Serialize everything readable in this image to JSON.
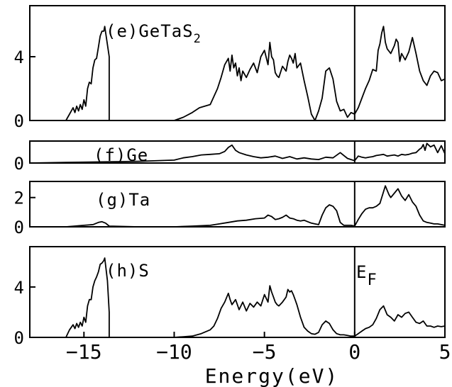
{
  "figure": {
    "xlabel": "Energy(eV)",
    "ef_label": "E",
    "ef_sub": "F"
  },
  "chart_data": [
    {
      "type": "line",
      "label": "(e)GeTaS",
      "label_sub": "2",
      "xlim": [
        -18,
        5
      ],
      "ylim": [
        0,
        7.2
      ],
      "yticks": [
        0,
        4
      ],
      "xticks": [],
      "fermi_line": 0,
      "series": [
        {
          "x": [
            -16,
            -15.8,
            -15.6,
            -15.5,
            -15.4,
            -15.3,
            -15.2,
            -15.1,
            -15.0,
            -14.9,
            -14.8,
            -14.7,
            -14.6,
            -14.5,
            -14.4,
            -14.3,
            -14.2,
            -14.1,
            -14.0,
            -13.9,
            -13.85,
            -13.6,
            -13.6,
            -10,
            -9.5,
            -9,
            -8.6,
            -8.3,
            -8.0,
            -7.8,
            -7.6,
            -7.4,
            -7.2,
            -7.0,
            -6.9,
            -6.8,
            -6.7,
            -6.6,
            -6.5,
            -6.4,
            -6.3,
            -6.2,
            -6.0,
            -5.8,
            -5.6,
            -5.4,
            -5.2,
            -5.0,
            -4.8,
            -4.7,
            -4.6,
            -4.5,
            -4.4,
            -4.3,
            -4.2,
            -4.0,
            -3.8,
            -3.7,
            -3.6,
            -3.5,
            -3.4,
            -3.3,
            -3.2,
            -3.0,
            -2.8,
            -2.6,
            -2.4,
            -2.2,
            -2.0,
            -1.8,
            -1.6,
            -1.4,
            -1.2,
            -1.0,
            -0.8,
            -0.6,
            -0.4,
            -0.2,
            0,
            0.2,
            0.4,
            0.6,
            0.8,
            1.0,
            1.2,
            1.3,
            1.4,
            1.5,
            1.6,
            1.7,
            1.8,
            2.0,
            2.2,
            2.3,
            2.4,
            2.5,
            2.6,
            2.8,
            3.0,
            3.2,
            3.4,
            3.6,
            3.8,
            4.0,
            4.2,
            4.4,
            4.6,
            4.8,
            5.0
          ],
          "y": [
            0,
            0.4,
            0.8,
            0.5,
            0.9,
            0.6,
            1.0,
            0.7,
            1.3,
            0.9,
            2.0,
            2.4,
            2.3,
            3.3,
            3.8,
            3.9,
            4.6,
            5.3,
            5.6,
            5.6,
            5.9,
            4.0,
            0,
            0,
            0.2,
            0.5,
            0.8,
            0.9,
            1.0,
            1.5,
            2.0,
            2.7,
            3.5,
            3.9,
            3.1,
            4.1,
            3.3,
            3.6,
            2.8,
            3.3,
            2.5,
            3.1,
            2.7,
            3.2,
            3.6,
            3.0,
            4.0,
            4.4,
            3.5,
            4.9,
            4.0,
            3.8,
            3.0,
            2.8,
            2.7,
            3.4,
            3.1,
            3.7,
            4.1,
            3.9,
            3.6,
            4.2,
            3.3,
            3.6,
            2.5,
            1.5,
            0.4,
            0,
            0.6,
            1.4,
            3.1,
            3.3,
            2.6,
            1.2,
            0.6,
            0.7,
            0.2,
            0.5,
            0.4,
            0.8,
            1.4,
            2.0,
            2.5,
            3.2,
            3.1,
            4.4,
            4.8,
            5.5,
            5.9,
            4.9,
            4.5,
            4.2,
            4.7,
            5.1,
            4.9,
            3.7,
            4.2,
            3.8,
            4.3,
            5.2,
            4.2,
            3.1,
            2.5,
            2.2,
            2.8,
            3.1,
            3.0,
            2.5,
            2.6
          ]
        }
      ]
    },
    {
      "type": "line",
      "label": "(f)Ge",
      "xlim": [
        -18,
        5
      ],
      "ylim": [
        0,
        1.9
      ],
      "yticks": [
        0
      ],
      "xticks": [],
      "fermi_line": 0,
      "series": [
        {
          "x": [
            -18,
            -16,
            -14,
            -12,
            -10,
            -9.5,
            -9,
            -8.5,
            -8,
            -7.5,
            -7.2,
            -7.0,
            -6.8,
            -6.6,
            -6.4,
            -6.0,
            -5.6,
            -5.2,
            -4.8,
            -4.4,
            -4.0,
            -3.6,
            -3.2,
            -2.8,
            -2.4,
            -2.0,
            -1.6,
            -1.2,
            -0.8,
            -0.4,
            -0.2,
            0,
            0.2,
            0.4,
            0.6,
            0.8,
            1.0,
            1.2,
            1.4,
            1.6,
            1.8,
            2.0,
            2.2,
            2.4,
            2.6,
            2.8,
            3.0,
            3.2,
            3.4,
            3.6,
            3.7,
            3.8,
            3.9,
            4.0,
            4.2,
            4.4,
            4.6,
            4.8,
            5.0
          ],
          "y": [
            0,
            0.05,
            0.1,
            0.15,
            0.25,
            0.45,
            0.55,
            0.7,
            0.75,
            0.8,
            1.0,
            1.35,
            1.55,
            1.1,
            0.9,
            0.7,
            0.55,
            0.45,
            0.5,
            0.6,
            0.4,
            0.55,
            0.35,
            0.45,
            0.35,
            0.3,
            0.5,
            0.45,
            0.9,
            0.4,
            0.3,
            0.2,
            0.6,
            0.5,
            0.45,
            0.5,
            0.55,
            0.65,
            0.7,
            0.75,
            0.6,
            0.65,
            0.7,
            0.6,
            0.75,
            0.7,
            0.75,
            0.85,
            0.9,
            1.2,
            1.3,
            1.6,
            1.1,
            1.7,
            1.4,
            1.55,
            0.9,
            1.5,
            0.8
          ]
        }
      ]
    },
    {
      "type": "line",
      "label": "(g)Ta",
      "xlim": [
        -18,
        5
      ],
      "ylim": [
        0,
        3.1
      ],
      "yticks": [
        0,
        2
      ],
      "xticks": [],
      "fermi_line": 0,
      "series": [
        {
          "x": [
            -18,
            -16,
            -15,
            -14.5,
            -14.2,
            -14.0,
            -13.8,
            -13.6,
            -12,
            -10,
            -9,
            -8,
            -7.5,
            -7,
            -6.5,
            -6.0,
            -5.5,
            -5.0,
            -4.8,
            -4.6,
            -4.4,
            -4.2,
            -4.0,
            -3.8,
            -3.6,
            -3.4,
            -3.2,
            -3.0,
            -2.8,
            -2.6,
            -2.4,
            -2.2,
            -2.0,
            -1.8,
            -1.6,
            -1.4,
            -1.2,
            -1.0,
            -0.8,
            -0.6,
            -0.4,
            -0.2,
            0,
            0.2,
            0.4,
            0.6,
            0.8,
            1.0,
            1.2,
            1.4,
            1.6,
            1.7,
            1.8,
            1.9,
            2.0,
            2.2,
            2.4,
            2.6,
            2.8,
            3.0,
            3.2,
            3.4,
            3.6,
            3.8,
            4.0,
            4.2,
            4.4,
            4.6,
            4.8,
            5.0
          ],
          "y": [
            0,
            0,
            0.1,
            0.15,
            0.3,
            0.35,
            0.25,
            0.05,
            0,
            0,
            0.05,
            0.1,
            0.2,
            0.3,
            0.4,
            0.45,
            0.55,
            0.6,
            0.8,
            0.7,
            0.5,
            0.55,
            0.65,
            0.8,
            0.6,
            0.55,
            0.45,
            0.4,
            0.45,
            0.35,
            0.25,
            0.2,
            0.15,
            0.8,
            1.3,
            1.5,
            1.4,
            1.1,
            0.3,
            0.1,
            0.1,
            0.1,
            0.05,
            0.5,
            0.9,
            1.2,
            1.3,
            1.3,
            1.4,
            1.6,
            2.4,
            2.8,
            2.5,
            2.2,
            2.0,
            2.3,
            2.6,
            2.1,
            1.8,
            2.2,
            1.7,
            1.4,
            0.8,
            0.4,
            0.3,
            0.25,
            0.2,
            0.2,
            0.15,
            0.1
          ]
        }
      ]
    },
    {
      "type": "line",
      "label": "(h)S",
      "xlim": [
        -18,
        5
      ],
      "ylim": [
        0,
        7.2
      ],
      "yticks": [
        0,
        4
      ],
      "xticks": [
        -15,
        -10,
        -5,
        0,
        5
      ],
      "fermi_line": 0,
      "series": [
        {
          "x": [
            -16,
            -15.8,
            -15.6,
            -15.5,
            -15.4,
            -15.3,
            -15.2,
            -15.1,
            -15.0,
            -14.9,
            -14.8,
            -14.7,
            -14.6,
            -14.5,
            -14.4,
            -14.3,
            -14.2,
            -14.1,
            -14.0,
            -13.9,
            -13.85,
            -13.7,
            -13.6,
            -13.6,
            -10,
            -9.5,
            -9,
            -8.5,
            -8,
            -7.8,
            -7.6,
            -7.4,
            -7.2,
            -7.0,
            -6.9,
            -6.8,
            -6.6,
            -6.4,
            -6.2,
            -6.0,
            -5.8,
            -5.6,
            -5.4,
            -5.2,
            -5.0,
            -4.8,
            -4.7,
            -4.6,
            -4.5,
            -4.4,
            -4.3,
            -4.2,
            -4.0,
            -3.8,
            -3.7,
            -3.6,
            -3.5,
            -3.4,
            -3.3,
            -3.2,
            -3.0,
            -2.8,
            -2.6,
            -2.4,
            -2.2,
            -2.0,
            -1.8,
            -1.6,
            -1.4,
            -1.2,
            -1.0,
            -0.8,
            -0.6,
            -0.4,
            -0.2,
            0,
            0.2,
            0.4,
            0.6,
            0.8,
            1.0,
            1.2,
            1.4,
            1.6,
            1.8,
            2.0,
            2.2,
            2.4,
            2.6,
            2.8,
            3.0,
            3.2,
            3.4,
            3.6,
            3.8,
            4.0,
            4.2,
            4.4,
            4.6,
            4.8,
            5.0
          ],
          "y": [
            0,
            0.6,
            1.0,
            0.7,
            1.1,
            0.8,
            1.2,
            0.9,
            1.6,
            1.2,
            2.5,
            3.0,
            3.0,
            4.0,
            4.5,
            4.8,
            5.2,
            5.8,
            5.9,
            6.1,
            6.3,
            4.5,
            2.0,
            0,
            0,
            0.05,
            0.1,
            0.3,
            0.6,
            0.9,
            1.5,
            2.3,
            2.8,
            3.5,
            3.0,
            2.6,
            3.0,
            2.2,
            2.8,
            2.1,
            2.7,
            2.4,
            2.8,
            2.5,
            3.4,
            2.8,
            4.1,
            3.6,
            3.2,
            2.8,
            2.6,
            2.5,
            2.8,
            3.2,
            3.8,
            3.6,
            3.7,
            3.4,
            3.0,
            2.6,
            1.6,
            0.8,
            0.5,
            0.3,
            0.25,
            0.4,
            1.0,
            1.3,
            1.1,
            0.6,
            0.3,
            0.2,
            0.2,
            0.15,
            0.1,
            0.1,
            0.3,
            0.5,
            0.7,
            0.8,
            1.0,
            1.5,
            2.2,
            2.5,
            1.8,
            1.6,
            1.3,
            1.8,
            1.6,
            1.9,
            2.0,
            1.6,
            1.2,
            1.1,
            1.3,
            0.9,
            0.9,
            0.8,
            0.9,
            0.85,
            0.9
          ]
        }
      ]
    }
  ]
}
